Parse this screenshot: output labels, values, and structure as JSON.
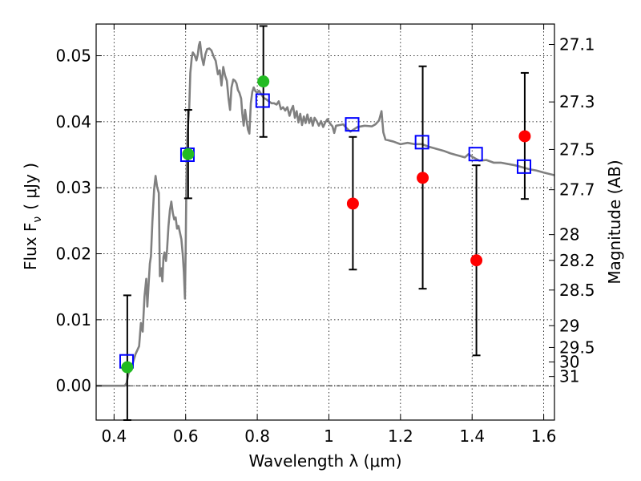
{
  "chart_data": {
    "type": "scatter",
    "title": "",
    "xlabel": "Wavelength  λ (μm)",
    "ylabel": "Flux  F",
    "ylabel_sub": "ν",
    "ylabel_unit": "( μJy )",
    "y2label": "Magnitude (AB)",
    "xlim": [
      0.35,
      1.63
    ],
    "ylim": [
      -0.0052,
      0.0548
    ],
    "grid": true,
    "x_ticks": [
      0.4,
      0.6,
      0.8,
      1.0,
      1.2,
      1.4,
      1.6
    ],
    "x_tick_labels": [
      "0.4",
      "0.6",
      "0.8",
      "1",
      "1.2",
      "1.4",
      "1.6"
    ],
    "y_ticks": [
      0.0,
      0.01,
      0.02,
      0.03,
      0.04,
      0.05
    ],
    "y_tick_labels": [
      "0.00",
      "0.01",
      "0.02",
      "0.03",
      "0.04",
      "0.05"
    ],
    "y2_ticks": [
      {
        "label": "27.1",
        "flux": 0.0517
      },
      {
        "label": "27.3",
        "flux": 0.043
      },
      {
        "label": "27.5",
        "flux": 0.0358
      },
      {
        "label": "27.7",
        "flux": 0.0297
      },
      {
        "label": "28",
        "flux": 0.0229
      },
      {
        "label": "28.2",
        "flux": 0.019
      },
      {
        "label": "28.5",
        "flux": 0.0145
      },
      {
        "label": "29",
        "flux": 0.0091
      },
      {
        "label": "29.5",
        "flux": 0.0058
      },
      {
        "label": "30",
        "flux": 0.0036
      },
      {
        "label": "31",
        "flux": 0.0014
      }
    ],
    "zero_line": 0.0,
    "colors": {
      "template": "#808080",
      "model": "#0000ff",
      "observed_red": "#ff0000",
      "observed_green": "#22bb22",
      "errorbar": "#000000",
      "grid": "#000000"
    },
    "series": [
      {
        "kind": "line",
        "points": [
          [
            0.35,
            0.0
          ],
          [
            0.43,
            0.0
          ],
          [
            0.435,
            0.0004
          ],
          [
            0.44,
            0.0018
          ],
          [
            0.45,
            0.003
          ],
          [
            0.46,
            0.0048
          ],
          [
            0.47,
            0.006
          ],
          [
            0.475,
            0.0095
          ],
          [
            0.48,
            0.0082
          ],
          [
            0.485,
            0.0135
          ],
          [
            0.49,
            0.0162
          ],
          [
            0.493,
            0.012
          ],
          [
            0.497,
            0.0158
          ],
          [
            0.5,
            0.0185
          ],
          [
            0.503,
            0.0196
          ],
          [
            0.507,
            0.0248
          ],
          [
            0.512,
            0.0298
          ],
          [
            0.516,
            0.0318
          ],
          [
            0.52,
            0.0302
          ],
          [
            0.525,
            0.0292
          ],
          [
            0.528,
            0.0166
          ],
          [
            0.532,
            0.0178
          ],
          [
            0.535,
            0.0158
          ],
          [
            0.538,
            0.0195
          ],
          [
            0.541,
            0.0202
          ],
          [
            0.545,
            0.0189
          ],
          [
            0.548,
            0.0206
          ],
          [
            0.552,
            0.0242
          ],
          [
            0.556,
            0.0266
          ],
          [
            0.56,
            0.0279
          ],
          [
            0.564,
            0.0262
          ],
          [
            0.568,
            0.0252
          ],
          [
            0.572,
            0.0255
          ],
          [
            0.576,
            0.0238
          ],
          [
            0.58,
            0.0242
          ],
          [
            0.584,
            0.0232
          ],
          [
            0.588,
            0.0222
          ],
          [
            0.592,
            0.0198
          ],
          [
            0.595,
            0.0172
          ],
          [
            0.598,
            0.0132
          ],
          [
            0.6,
            0.0205
          ],
          [
            0.602,
            0.0305
          ],
          [
            0.605,
            0.0382
          ],
          [
            0.61,
            0.0422
          ],
          [
            0.613,
            0.0474
          ],
          [
            0.617,
            0.0497
          ],
          [
            0.62,
            0.0505
          ],
          [
            0.625,
            0.0501
          ],
          [
            0.63,
            0.0493
          ],
          [
            0.634,
            0.0502
          ],
          [
            0.637,
            0.0516
          ],
          [
            0.64,
            0.0521
          ],
          [
            0.645,
            0.0498
          ],
          [
            0.65,
            0.0486
          ],
          [
            0.655,
            0.0502
          ],
          [
            0.66,
            0.051
          ],
          [
            0.666,
            0.0511
          ],
          [
            0.672,
            0.0508
          ],
          [
            0.678,
            0.0499
          ],
          [
            0.684,
            0.0492
          ],
          [
            0.69,
            0.0472
          ],
          [
            0.695,
            0.0478
          ],
          [
            0.7,
            0.0455
          ],
          [
            0.705,
            0.0483
          ],
          [
            0.71,
            0.047
          ],
          [
            0.715,
            0.0462
          ],
          [
            0.72,
            0.0434
          ],
          [
            0.724,
            0.0418
          ],
          [
            0.728,
            0.0452
          ],
          [
            0.733,
            0.0464
          ],
          [
            0.738,
            0.0462
          ],
          [
            0.742,
            0.0458
          ],
          [
            0.746,
            0.0448
          ],
          [
            0.75,
            0.0444
          ],
          [
            0.755,
            0.0435
          ],
          [
            0.758,
            0.0413
          ],
          [
            0.762,
            0.0394
          ],
          [
            0.766,
            0.0418
          ],
          [
            0.77,
            0.0402
          ],
          [
            0.774,
            0.0388
          ],
          [
            0.778,
            0.0382
          ],
          [
            0.782,
            0.0428
          ],
          [
            0.786,
            0.0445
          ],
          [
            0.79,
            0.0452
          ],
          [
            0.795,
            0.0446
          ],
          [
            0.8,
            0.0444
          ],
          [
            0.805,
            0.0447
          ],
          [
            0.812,
            0.0441
          ],
          [
            0.818,
            0.0436
          ],
          [
            0.825,
            0.0434
          ],
          [
            0.832,
            0.0431
          ],
          [
            0.84,
            0.0428
          ],
          [
            0.847,
            0.0428
          ],
          [
            0.854,
            0.0426
          ],
          [
            0.86,
            0.0431
          ],
          [
            0.866,
            0.0419
          ],
          [
            0.872,
            0.0422
          ],
          [
            0.878,
            0.0417
          ],
          [
            0.884,
            0.0422
          ],
          [
            0.89,
            0.0409
          ],
          [
            0.895,
            0.0418
          ],
          [
            0.9,
            0.0424
          ],
          [
            0.905,
            0.0406
          ],
          [
            0.91,
            0.0416
          ],
          [
            0.915,
            0.0399
          ],
          [
            0.92,
            0.0412
          ],
          [
            0.925,
            0.0395
          ],
          [
            0.93,
            0.0408
          ],
          [
            0.935,
            0.0398
          ],
          [
            0.94,
            0.0411
          ],
          [
            0.945,
            0.0398
          ],
          [
            0.95,
            0.0406
          ],
          [
            0.955,
            0.0394
          ],
          [
            0.96,
            0.0406
          ],
          [
            0.966,
            0.0401
          ],
          [
            0.972,
            0.0394
          ],
          [
            0.978,
            0.0401
          ],
          [
            0.984,
            0.0392
          ],
          [
            0.99,
            0.0399
          ],
          [
            0.996,
            0.0404
          ],
          [
            1.002,
            0.0398
          ],
          [
            1.01,
            0.0393
          ],
          [
            1.015,
            0.0383
          ],
          [
            1.02,
            0.0394
          ],
          [
            1.03,
            0.0395
          ],
          [
            1.04,
            0.0396
          ],
          [
            1.05,
            0.039
          ],
          [
            1.06,
            0.0385
          ],
          [
            1.08,
            0.0392
          ],
          [
            1.1,
            0.0394
          ],
          [
            1.12,
            0.0393
          ],
          [
            1.13,
            0.0396
          ],
          [
            1.14,
            0.0402
          ],
          [
            1.147,
            0.0416
          ],
          [
            1.152,
            0.0384
          ],
          [
            1.158,
            0.0373
          ],
          [
            1.165,
            0.0372
          ],
          [
            1.18,
            0.037
          ],
          [
            1.2,
            0.0366
          ],
          [
            1.22,
            0.0368
          ],
          [
            1.24,
            0.0366
          ],
          [
            1.26,
            0.0366
          ],
          [
            1.28,
            0.0362
          ],
          [
            1.3,
            0.0359
          ],
          [
            1.32,
            0.0356
          ],
          [
            1.34,
            0.0352
          ],
          [
            1.36,
            0.0349
          ],
          [
            1.38,
            0.0346
          ],
          [
            1.39,
            0.0351
          ],
          [
            1.4,
            0.0347
          ],
          [
            1.42,
            0.0341
          ],
          [
            1.44,
            0.0342
          ],
          [
            1.46,
            0.0338
          ],
          [
            1.48,
            0.0338
          ],
          [
            1.5,
            0.0336
          ],
          [
            1.52,
            0.0334
          ],
          [
            1.54,
            0.0331
          ],
          [
            1.56,
            0.0328
          ],
          [
            1.58,
            0.0326
          ],
          [
            1.6,
            0.0323
          ],
          [
            1.63,
            0.0319
          ]
        ]
      },
      {
        "kind": "squares",
        "points": [
          [
            0.435,
            0.0037
          ],
          [
            0.605,
            0.035
          ],
          [
            0.815,
            0.0432
          ],
          [
            1.065,
            0.0396
          ],
          [
            1.26,
            0.0369
          ],
          [
            1.41,
            0.0351
          ],
          [
            1.545,
            0.0332
          ]
        ]
      },
      {
        "kind": "errorbars",
        "points": [
          {
            "x": 0.437,
            "y": 0.0028,
            "lo": -0.0052,
            "hi": 0.0137
          },
          {
            "x": 0.607,
            "y": 0.0351,
            "lo": 0.0284,
            "hi": 0.0418
          },
          {
            "x": 0.817,
            "y": 0.0461,
            "lo": 0.0377,
            "hi": 0.0545
          },
          {
            "x": 1.067,
            "y": 0.0276,
            "lo": 0.0176,
            "hi": 0.0377
          },
          {
            "x": 1.262,
            "y": 0.0315,
            "lo": 0.0147,
            "hi": 0.0484
          },
          {
            "x": 1.412,
            "y": 0.019,
            "lo": 0.0046,
            "hi": 0.0334
          },
          {
            "x": 1.547,
            "y": 0.0378,
            "lo": 0.0283,
            "hi": 0.0474
          }
        ]
      },
      {
        "kind": "dots",
        "points": [
          {
            "x": 0.437,
            "y": 0.0028,
            "color": "green"
          },
          {
            "x": 0.607,
            "y": 0.0351,
            "color": "green"
          },
          {
            "x": 0.817,
            "y": 0.0461,
            "color": "green"
          },
          {
            "x": 1.067,
            "y": 0.0276,
            "color": "red"
          },
          {
            "x": 1.262,
            "y": 0.0315,
            "color": "red"
          },
          {
            "x": 1.412,
            "y": 0.019,
            "color": "red"
          },
          {
            "x": 1.547,
            "y": 0.0378,
            "color": "red"
          }
        ]
      }
    ]
  }
}
